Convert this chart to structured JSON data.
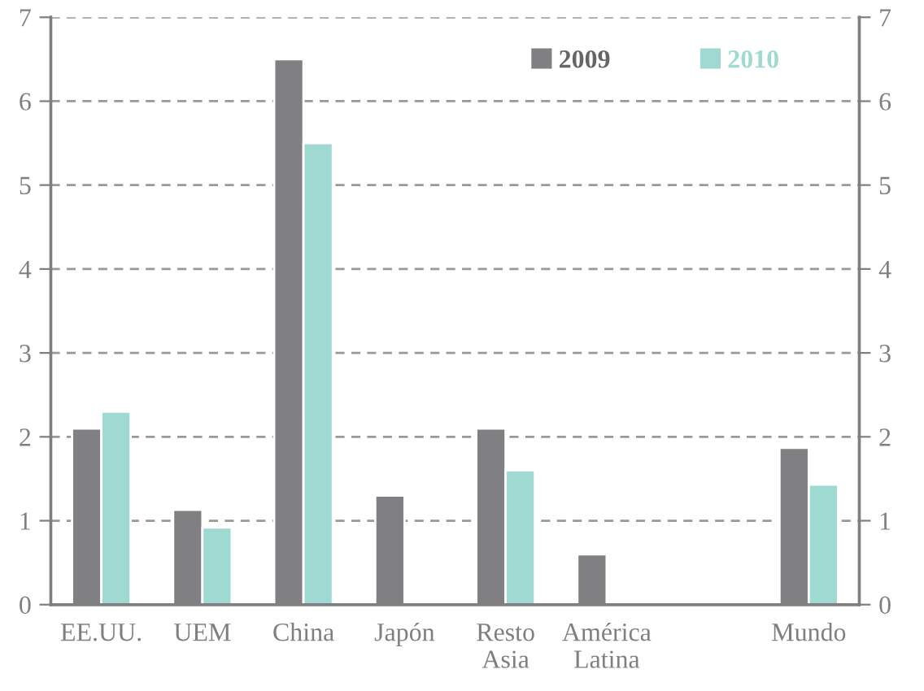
{
  "chart_data": {
    "type": "bar",
    "categories": [
      "EE.UU.",
      "UEM",
      "China",
      "Japón",
      "Resto Asia",
      "América Latina",
      null,
      "Mundo"
    ],
    "series": [
      {
        "name": "2009",
        "color": "#808082",
        "values": [
          2.1,
          1.13,
          6.5,
          1.3,
          2.1,
          0.6,
          null,
          1.87
        ]
      },
      {
        "name": "2010",
        "color": "#9ed9d2",
        "values": [
          2.3,
          0.92,
          5.5,
          null,
          1.6,
          null,
          null,
          1.43
        ]
      }
    ],
    "ylim": [
      0,
      7
    ],
    "yticks": [
      0,
      1,
      2,
      3,
      4,
      5,
      6,
      7
    ],
    "y2lim": [
      0,
      7
    ],
    "y2ticks": [
      0,
      1,
      2,
      3,
      4,
      5,
      6,
      7
    ],
    "grid": "y",
    "line_style": "dashed",
    "legend": "top right"
  }
}
